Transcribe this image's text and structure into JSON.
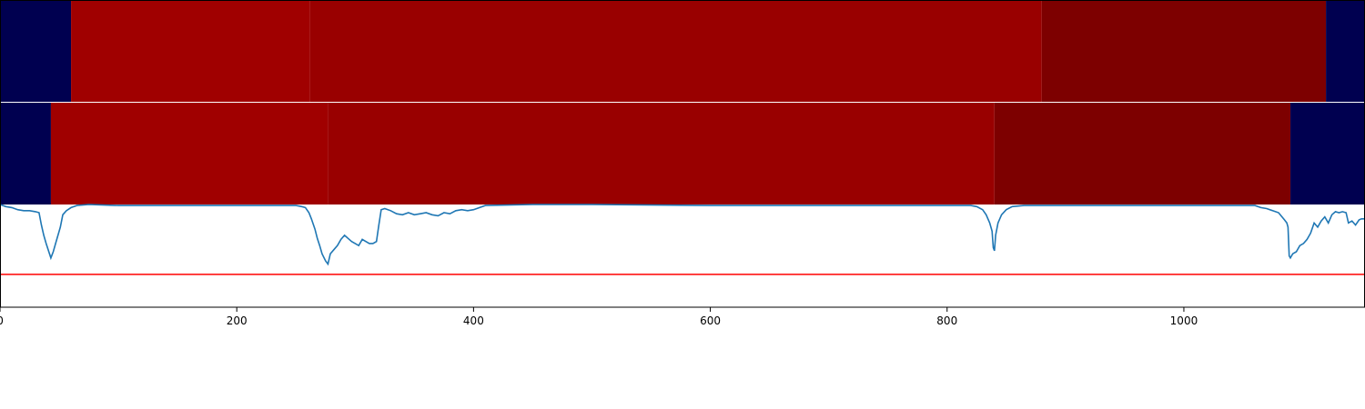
{
  "chart_data": [
    {
      "type": "heatmap",
      "panel": "top-strip",
      "x_range": [
        0,
        1153
      ],
      "segments": [
        {
          "start": 0,
          "end": 60,
          "color": "#000050"
        },
        {
          "start": 60,
          "end": 262,
          "color": "#a00000"
        },
        {
          "start": 262,
          "end": 880,
          "color": "#990000"
        },
        {
          "start": 880,
          "end": 1120,
          "color": "#7d0000"
        },
        {
          "start": 1120,
          "end": 1153,
          "color": "#000050"
        }
      ]
    },
    {
      "type": "heatmap",
      "panel": "middle-strip",
      "x_range": [
        0,
        1153
      ],
      "segments": [
        {
          "start": 0,
          "end": 43,
          "color": "#000050"
        },
        {
          "start": 43,
          "end": 277,
          "color": "#a00000"
        },
        {
          "start": 277,
          "end": 840,
          "color": "#990000"
        },
        {
          "start": 840,
          "end": 1090,
          "color": "#7d0000"
        },
        {
          "start": 1090,
          "end": 1153,
          "color": "#000050"
        }
      ]
    },
    {
      "type": "line",
      "panel": "bottom-signal",
      "xlim": [
        0,
        1153
      ],
      "ylim": [
        -1.0,
        0.0
      ],
      "x_ticks": [
        0,
        200,
        400,
        600,
        800,
        1000
      ],
      "x_tick_labels": [
        "0",
        "200",
        "400",
        "600",
        "800",
        "1000"
      ],
      "grid": false,
      "threshold": {
        "value": -0.68,
        "color": "#ff0000"
      },
      "series": [
        {
          "color": "#1f77b4",
          "points": [
            [
              0,
              -0.0
            ],
            [
              5,
              -0.02
            ],
            [
              10,
              -0.03
            ],
            [
              15,
              -0.05
            ],
            [
              20,
              -0.06
            ],
            [
              25,
              -0.06
            ],
            [
              30,
              -0.07
            ],
            [
              33,
              -0.08
            ],
            [
              35,
              -0.2
            ],
            [
              37,
              -0.3
            ],
            [
              39,
              -0.38
            ],
            [
              41,
              -0.45
            ],
            [
              43,
              -0.52
            ],
            [
              45,
              -0.46
            ],
            [
              47,
              -0.38
            ],
            [
              49,
              -0.3
            ],
            [
              51,
              -0.22
            ],
            [
              53,
              -0.1
            ],
            [
              56,
              -0.06
            ],
            [
              60,
              -0.03
            ],
            [
              65,
              -0.01
            ],
            [
              75,
              0.0
            ],
            [
              100,
              -0.01
            ],
            [
              150,
              -0.01
            ],
            [
              200,
              -0.01
            ],
            [
              250,
              -0.01
            ],
            [
              255,
              -0.02
            ],
            [
              258,
              -0.03
            ],
            [
              261,
              -0.08
            ],
            [
              263,
              -0.14
            ],
            [
              266,
              -0.24
            ],
            [
              268,
              -0.33
            ],
            [
              270,
              -0.4
            ],
            [
              272,
              -0.48
            ],
            [
              275,
              -0.55
            ],
            [
              277,
              -0.58
            ],
            [
              279,
              -0.48
            ],
            [
              282,
              -0.44
            ],
            [
              285,
              -0.4
            ],
            [
              288,
              -0.34
            ],
            [
              291,
              -0.3
            ],
            [
              294,
              -0.33
            ],
            [
              297,
              -0.36
            ],
            [
              300,
              -0.38
            ],
            [
              303,
              -0.4
            ],
            [
              306,
              -0.34
            ],
            [
              309,
              -0.36
            ],
            [
              312,
              -0.38
            ],
            [
              315,
              -0.38
            ],
            [
              318,
              -0.36
            ],
            [
              320,
              -0.2
            ],
            [
              322,
              -0.05
            ],
            [
              325,
              -0.04
            ],
            [
              330,
              -0.06
            ],
            [
              335,
              -0.09
            ],
            [
              340,
              -0.1
            ],
            [
              345,
              -0.08
            ],
            [
              350,
              -0.1
            ],
            [
              355,
              -0.09
            ],
            [
              360,
              -0.08
            ],
            [
              365,
              -0.1
            ],
            [
              370,
              -0.11
            ],
            [
              375,
              -0.08
            ],
            [
              380,
              -0.09
            ],
            [
              385,
              -0.06
            ],
            [
              390,
              -0.05
            ],
            [
              395,
              -0.06
            ],
            [
              400,
              -0.05
            ],
            [
              410,
              -0.01
            ],
            [
              450,
              0.0
            ],
            [
              500,
              -0.0
            ],
            [
              600,
              -0.01
            ],
            [
              700,
              -0.01
            ],
            [
              800,
              -0.01
            ],
            [
              820,
              -0.01
            ],
            [
              825,
              -0.02
            ],
            [
              830,
              -0.05
            ],
            [
              833,
              -0.1
            ],
            [
              836,
              -0.18
            ],
            [
              838,
              -0.26
            ],
            [
              839,
              -0.42
            ],
            [
              840,
              -0.45
            ],
            [
              841,
              -0.3
            ],
            [
              843,
              -0.18
            ],
            [
              846,
              -0.1
            ],
            [
              850,
              -0.05
            ],
            [
              855,
              -0.02
            ],
            [
              865,
              -0.01
            ],
            [
              900,
              -0.01
            ],
            [
              1000,
              -0.01
            ],
            [
              1060,
              -0.01
            ],
            [
              1065,
              -0.03
            ],
            [
              1070,
              -0.04
            ],
            [
              1075,
              -0.06
            ],
            [
              1080,
              -0.08
            ],
            [
              1085,
              -0.15
            ],
            [
              1087,
              -0.18
            ],
            [
              1088,
              -0.22
            ],
            [
              1089,
              -0.5
            ],
            [
              1090,
              -0.52
            ],
            [
              1092,
              -0.48
            ],
            [
              1095,
              -0.46
            ],
            [
              1098,
              -0.4
            ],
            [
              1101,
              -0.38
            ],
            [
              1104,
              -0.34
            ],
            [
              1107,
              -0.28
            ],
            [
              1110,
              -0.18
            ],
            [
              1113,
              -0.22
            ],
            [
              1116,
              -0.16
            ],
            [
              1119,
              -0.12
            ],
            [
              1122,
              -0.18
            ],
            [
              1125,
              -0.1
            ],
            [
              1128,
              -0.07
            ],
            [
              1131,
              -0.08
            ],
            [
              1134,
              -0.07
            ],
            [
              1137,
              -0.08
            ],
            [
              1139,
              -0.18
            ],
            [
              1142,
              -0.16
            ],
            [
              1145,
              -0.2
            ],
            [
              1148,
              -0.15
            ],
            [
              1150,
              -0.14
            ],
            [
              1153,
              -0.14
            ]
          ]
        }
      ]
    }
  ],
  "colors": {
    "signal": "#1f77b4",
    "threshold": "#ff0000",
    "low": "#000050",
    "high": "#a00000",
    "mid": "#990000",
    "dark": "#7d0000"
  }
}
